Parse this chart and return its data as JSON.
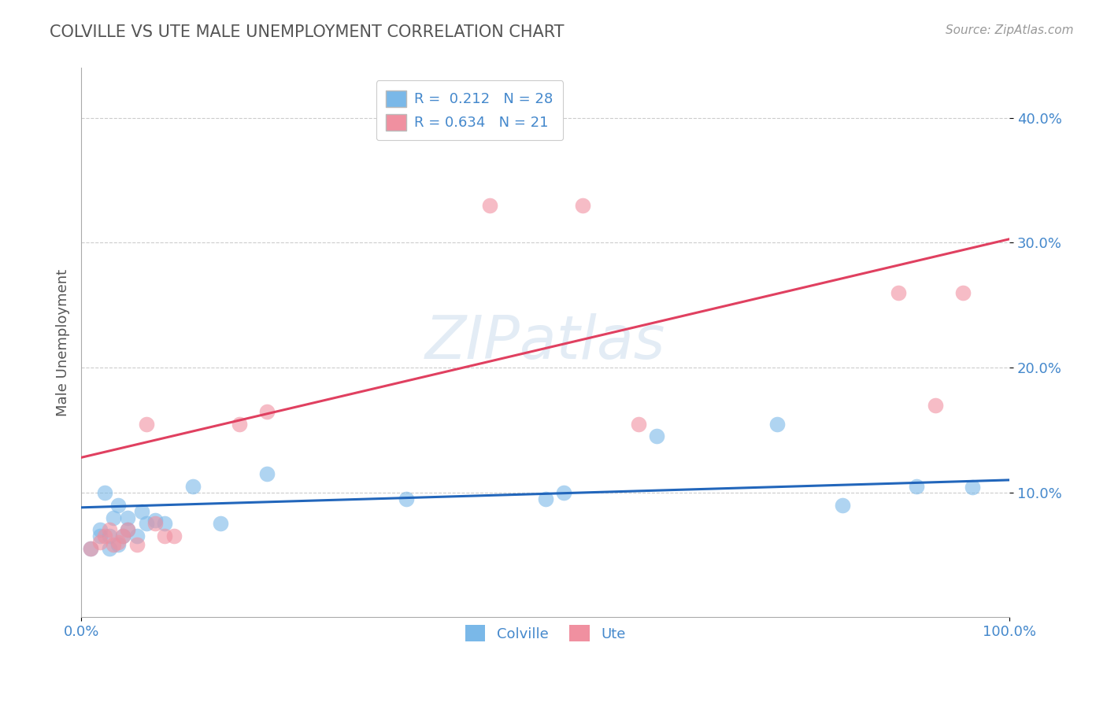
{
  "title": "COLVILLE VS UTE MALE UNEMPLOYMENT CORRELATION CHART",
  "ylabel": "Male Unemployment",
  "source_text": "Source: ZipAtlas.com",
  "watermark": "ZIPatlas",
  "colville_R": 0.212,
  "colville_N": 28,
  "ute_R": 0.634,
  "ute_N": 21,
  "colville_color": "#7ab8e8",
  "ute_color": "#f090a0",
  "colville_line_color": "#2266bb",
  "ute_line_color": "#e04060",
  "title_color": "#555555",
  "axis_label_color": "#4488cc",
  "tick_color": "#4488cc",
  "grid_color": "#cccccc",
  "background_color": "#ffffff",
  "xlim": [
    0,
    1
  ],
  "ylim": [
    0,
    0.44
  ],
  "yticks": [
    0.1,
    0.2,
    0.3,
    0.4
  ],
  "ytick_labels": [
    "10.0%",
    "20.0%",
    "30.0%",
    "40.0%"
  ],
  "xtick_positions": [
    0.0,
    1.0
  ],
  "xtick_labels": [
    "0.0%",
    "100.0%"
  ],
  "colville_x": [
    0.01,
    0.02,
    0.02,
    0.025,
    0.03,
    0.03,
    0.035,
    0.04,
    0.04,
    0.045,
    0.05,
    0.05,
    0.06,
    0.065,
    0.07,
    0.08,
    0.09,
    0.12,
    0.15,
    0.2,
    0.35,
    0.5,
    0.52,
    0.62,
    0.75,
    0.82,
    0.9,
    0.96
  ],
  "colville_y": [
    0.055,
    0.065,
    0.07,
    0.1,
    0.055,
    0.065,
    0.08,
    0.058,
    0.09,
    0.065,
    0.07,
    0.08,
    0.065,
    0.085,
    0.075,
    0.078,
    0.075,
    0.105,
    0.075,
    0.115,
    0.095,
    0.095,
    0.1,
    0.145,
    0.155,
    0.09,
    0.105,
    0.104
  ],
  "ute_x": [
    0.01,
    0.02,
    0.025,
    0.03,
    0.035,
    0.04,
    0.045,
    0.05,
    0.06,
    0.07,
    0.08,
    0.09,
    0.1,
    0.17,
    0.2,
    0.44,
    0.54,
    0.6,
    0.88,
    0.92,
    0.95
  ],
  "ute_y": [
    0.055,
    0.06,
    0.065,
    0.07,
    0.058,
    0.06,
    0.065,
    0.07,
    0.058,
    0.155,
    0.075,
    0.065,
    0.065,
    0.155,
    0.165,
    0.33,
    0.33,
    0.155,
    0.26,
    0.17,
    0.26
  ],
  "colville_intercept": 0.088,
  "colville_slope": 0.022,
  "ute_intercept": 0.128,
  "ute_slope": 0.175
}
